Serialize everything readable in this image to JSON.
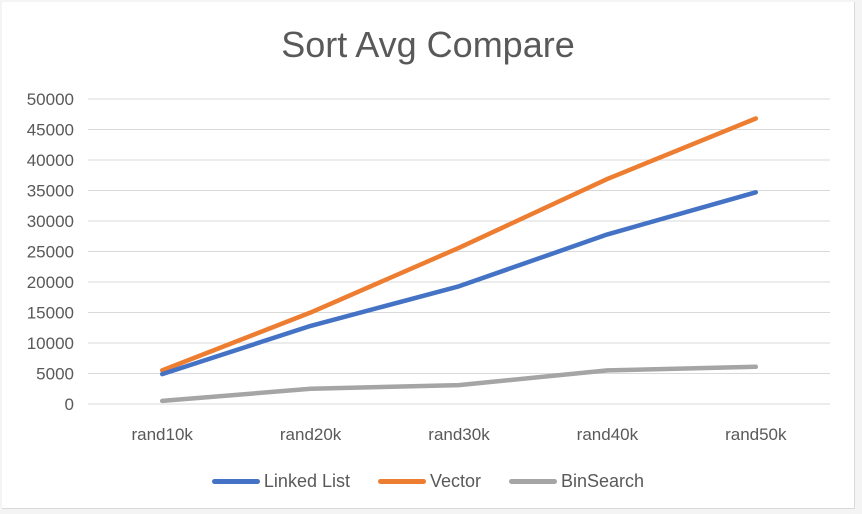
{
  "chart_data": {
    "type": "line",
    "title": "Sort Avg Compare",
    "xlabel": "",
    "ylabel": "",
    "categories": [
      "rand10k",
      "rand20k",
      "rand30k",
      "rand40k",
      "rand50k"
    ],
    "ylim": [
      0,
      50000
    ],
    "yticks": [
      "50000",
      "45000",
      "40000",
      "35000",
      "30000",
      "25000",
      "20000",
      "15000",
      "10000",
      "5000",
      "0"
    ],
    "grid": true,
    "legend_position": "bottom",
    "series": [
      {
        "name": "Linked List",
        "color": "#4472C4",
        "values": [
          4900,
          12800,
          19300,
          27800,
          34700
        ]
      },
      {
        "name": "Vector",
        "color": "#ED7D31",
        "values": [
          5500,
          15000,
          25600,
          36900,
          46800
        ]
      },
      {
        "name": "BinSearch",
        "color": "#A5A5A5",
        "values": [
          500,
          2500,
          3100,
          5500,
          6100
        ]
      }
    ]
  }
}
